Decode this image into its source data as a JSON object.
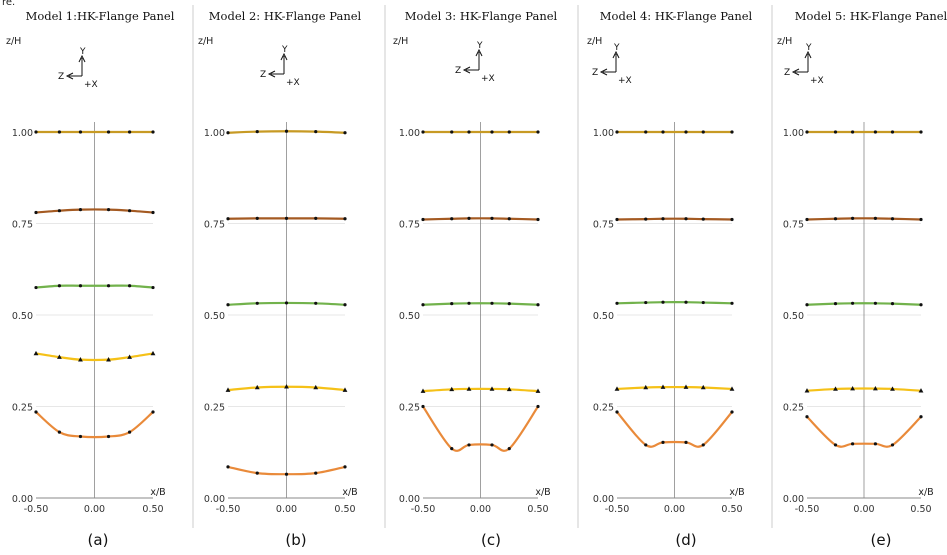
{
  "figure": {
    "clipped_text": "re."
  },
  "coord_labels": {
    "y": "Y",
    "z": "Z",
    "x": "+X"
  },
  "colors": {
    "series": [
      "#E98A3A",
      "#F5C118",
      "#72B24C",
      "#A45A22",
      "#C79A24"
    ],
    "grid": "#cfcfcf",
    "axis": "#888888",
    "divider": "#c0c0c0",
    "marker": "#111111"
  },
  "chart_data": [
    {
      "type": "line",
      "title": "Model 1:HK-Flange Panel",
      "caption": "(a)",
      "xlabel": "x/B",
      "ylabel": "z/H",
      "xlim": [
        -0.5,
        0.5
      ],
      "ylim": [
        0,
        1.0
      ],
      "xticks": [
        "-0.50",
        "0.00",
        "0.50"
      ],
      "yticks": [
        "0.00",
        "0.25",
        "0.50",
        "0.75",
        "1.00"
      ],
      "x": [
        -0.5,
        -0.3,
        -0.12,
        0.12,
        0.3,
        0.5
      ],
      "series": [
        {
          "values": [
            0.235,
            0.18,
            0.168,
            0.168,
            0.18,
            0.235
          ],
          "marker": "dot"
        },
        {
          "values": [
            0.395,
            0.385,
            0.378,
            0.378,
            0.385,
            0.395
          ],
          "marker": "triangle"
        },
        {
          "values": [
            0.575,
            0.58,
            0.58,
            0.58,
            0.58,
            0.575
          ],
          "marker": "dot"
        },
        {
          "values": [
            0.78,
            0.785,
            0.788,
            0.788,
            0.785,
            0.78
          ],
          "marker": "dot"
        },
        {
          "values": [
            1.0,
            1.0,
            1.0,
            1.0,
            1.0,
            1.0
          ],
          "marker": "dot"
        }
      ]
    },
    {
      "type": "line",
      "title": "Model 2: HK-Flange Panel",
      "caption": "(b)",
      "xlabel": "x/B",
      "ylabel": "z/H",
      "xlim": [
        -0.5,
        0.5
      ],
      "ylim": [
        0,
        1.0
      ],
      "xticks": [
        "-0.50",
        "0.00",
        "0.50"
      ],
      "yticks": [
        "0.00",
        "0.25",
        "0.50",
        "0.75",
        "1.00"
      ],
      "x": [
        -0.5,
        -0.25,
        0.0,
        0.25,
        0.5
      ],
      "series": [
        {
          "values": [
            0.085,
            0.068,
            0.065,
            0.068,
            0.085
          ],
          "marker": "dot"
        },
        {
          "values": [
            0.295,
            0.302,
            0.304,
            0.302,
            0.295
          ],
          "marker": "triangle"
        },
        {
          "values": [
            0.528,
            0.532,
            0.533,
            0.532,
            0.528
          ],
          "marker": "dot"
        },
        {
          "values": [
            0.763,
            0.764,
            0.764,
            0.764,
            0.763
          ],
          "marker": "dot"
        },
        {
          "values": [
            0.998,
            1.001,
            1.002,
            1.001,
            0.998
          ],
          "marker": "dot"
        }
      ]
    },
    {
      "type": "line",
      "title": "Model 3: HK-Flange Panel",
      "caption": "(c)",
      "xlabel": "x/B",
      "ylabel": "z/H",
      "xlim": [
        -0.5,
        0.5
      ],
      "ylim": [
        0,
        1.0
      ],
      "xticks": [
        "-0.50",
        "0.00",
        "0.50"
      ],
      "yticks": [
        "0.00",
        "0.25",
        "0.50",
        "0.75",
        "1.00"
      ],
      "x": [
        -0.5,
        -0.25,
        -0.1,
        0.1,
        0.25,
        0.5
      ],
      "series": [
        {
          "values": [
            0.25,
            0.135,
            0.145,
            0.145,
            0.135,
            0.25
          ],
          "marker": "dot"
        },
        {
          "values": [
            0.292,
            0.297,
            0.298,
            0.298,
            0.297,
            0.292
          ],
          "marker": "triangle"
        },
        {
          "values": [
            0.528,
            0.531,
            0.532,
            0.532,
            0.531,
            0.528
          ],
          "marker": "dot"
        },
        {
          "values": [
            0.761,
            0.763,
            0.764,
            0.764,
            0.763,
            0.761
          ],
          "marker": "dot"
        },
        {
          "values": [
            1.0,
            1.0,
            1.0,
            1.0,
            1.0,
            1.0
          ],
          "marker": "dot"
        }
      ]
    },
    {
      "type": "line",
      "title": "Model 4: HK-Flange Panel",
      "caption": "(d)",
      "xlabel": "x/B",
      "ylabel": "z/H",
      "xlim": [
        -0.5,
        0.5
      ],
      "ylim": [
        0,
        1.0
      ],
      "xticks": [
        "-0.50",
        "0.00",
        "0.50"
      ],
      "yticks": [
        "0.00",
        "0.25",
        "0.50",
        "0.75",
        "1.00"
      ],
      "x": [
        -0.5,
        -0.25,
        -0.1,
        0.1,
        0.25,
        0.5
      ],
      "series": [
        {
          "values": [
            0.235,
            0.145,
            0.152,
            0.152,
            0.145,
            0.235
          ],
          "marker": "dot"
        },
        {
          "values": [
            0.298,
            0.302,
            0.303,
            0.303,
            0.302,
            0.298
          ],
          "marker": "triangle"
        },
        {
          "values": [
            0.532,
            0.534,
            0.535,
            0.535,
            0.534,
            0.532
          ],
          "marker": "dot"
        },
        {
          "values": [
            0.761,
            0.762,
            0.763,
            0.763,
            0.762,
            0.761
          ],
          "marker": "dot"
        },
        {
          "values": [
            1.0,
            1.0,
            1.0,
            1.0,
            1.0,
            1.0
          ],
          "marker": "dot"
        }
      ]
    },
    {
      "type": "line",
      "title": "Model 5: HK-Flange Panel",
      "caption": "(e)",
      "xlabel": "x/B",
      "ylabel": "z/H",
      "xlim": [
        -0.5,
        0.5
      ],
      "ylim": [
        0,
        1.0
      ],
      "xticks": [
        "-0.50",
        "0.00",
        "0.50"
      ],
      "yticks": [
        "0.00",
        "0.25",
        "0.50",
        "0.75",
        "1.00"
      ],
      "x": [
        -0.5,
        -0.25,
        -0.1,
        0.1,
        0.25,
        0.5
      ],
      "series": [
        {
          "values": [
            0.222,
            0.145,
            0.148,
            0.148,
            0.145,
            0.222
          ],
          "marker": "dot"
        },
        {
          "values": [
            0.293,
            0.298,
            0.299,
            0.299,
            0.298,
            0.293
          ],
          "marker": "triangle"
        },
        {
          "values": [
            0.528,
            0.531,
            0.532,
            0.532,
            0.531,
            0.528
          ],
          "marker": "dot"
        },
        {
          "values": [
            0.761,
            0.763,
            0.764,
            0.764,
            0.763,
            0.761
          ],
          "marker": "dot"
        },
        {
          "values": [
            1.0,
            1.0,
            1.0,
            1.0,
            1.0,
            1.0
          ],
          "marker": "dot"
        }
      ]
    }
  ]
}
